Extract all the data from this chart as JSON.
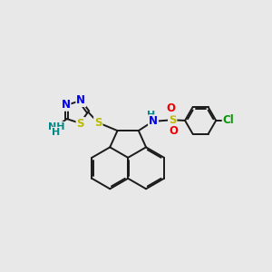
{
  "bg_color": "#e8e8e8",
  "bond_color": "#1a1a1a",
  "bond_width": 1.4,
  "atom_colors": {
    "N": "#0000ee",
    "S": "#bbbb00",
    "O": "#ee0000",
    "Cl": "#009900",
    "H": "#008888"
  },
  "font_size": 8.5,
  "fig_size": [
    3.0,
    3.0
  ],
  "dpi": 100,
  "xlim": [
    0,
    10
  ],
  "ylim": [
    0,
    10
  ]
}
